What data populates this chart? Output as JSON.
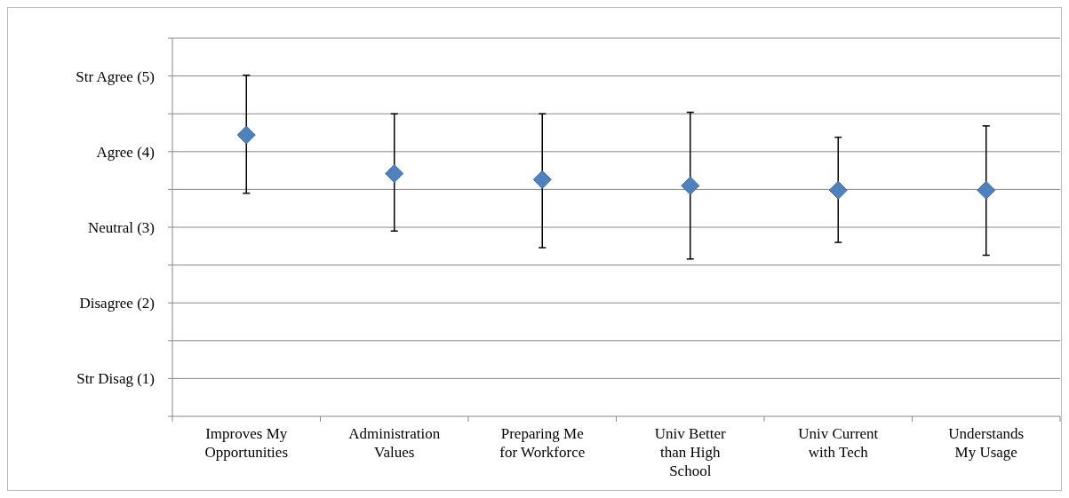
{
  "chart_data": {
    "type": "scatter",
    "categories": [
      "Improves My Opportunities",
      "Administration Values",
      "Preparing Me for Workforce",
      "Univ Better than High School",
      "Univ Current with Tech",
      "Understands My Usage"
    ],
    "series": [
      {
        "color": "#4f81bd",
        "values": [
          4.22,
          3.71,
          3.63,
          3.55,
          3.49,
          3.49
        ],
        "errors": [
          [
            3.45,
            5.01
          ],
          [
            2.95,
            4.5
          ],
          [
            2.73,
            4.5
          ],
          [
            2.58,
            4.52
          ],
          [
            2.8,
            4.19
          ],
          [
            2.63,
            4.34
          ]
        ]
      }
    ],
    "ylim": [
      0.5,
      5.5
    ],
    "yticks": [
      {
        "value": 0.5,
        "label": null
      },
      {
        "value": 1,
        "label": "Str Disag (1)"
      },
      {
        "value": 1.5,
        "label": null
      },
      {
        "value": 2,
        "label": "Disagree (2)"
      },
      {
        "value": 2.5,
        "label": null
      },
      {
        "value": 3,
        "label": "Neutral (3)"
      },
      {
        "value": 3.5,
        "label": null
      },
      {
        "value": 4,
        "label": "Agree (4)"
      },
      {
        "value": 4.5,
        "label": null
      },
      {
        "value": 5,
        "label": "Str Agree (5)"
      },
      {
        "value": 5.5,
        "label": null
      }
    ],
    "grid": "y",
    "marker": "diamond"
  }
}
